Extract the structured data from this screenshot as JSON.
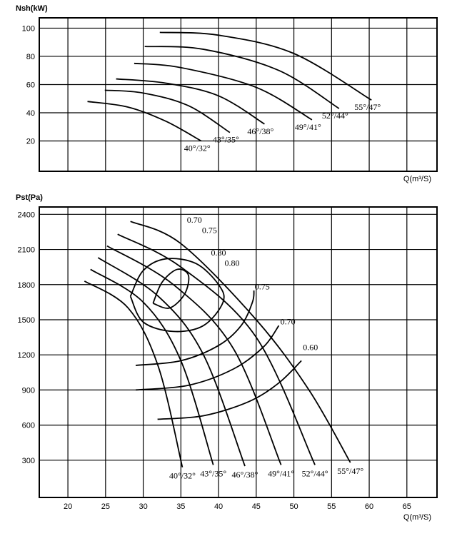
{
  "chart_data": [
    {
      "type": "line",
      "ylabel": "Nsh(kW)",
      "xlabel": "Q(m³/S)",
      "xlim": [
        16.2,
        69
      ],
      "xticks": [
        20,
        25,
        30,
        35,
        40,
        45,
        50,
        55,
        60,
        65
      ],
      "xtick_labels": false,
      "ylim": [
        -1.5,
        107.3
      ],
      "yticks": [
        20,
        40,
        60,
        80,
        100
      ],
      "grid": true,
      "color": "#000000",
      "series": [
        {
          "name": "40°/32°",
          "x": [
            22.6,
            28,
            33,
            37.7
          ],
          "values": [
            48,
            44,
            34,
            20
          ]
        },
        {
          "name": "43°/35°",
          "x": [
            24.9,
            30,
            36,
            41.5
          ],
          "values": [
            56,
            54,
            45,
            26
          ]
        },
        {
          "name": "46°/38°",
          "x": [
            26.4,
            33,
            40,
            46.1
          ],
          "values": [
            64,
            61,
            52,
            32
          ]
        },
        {
          "name": "49°/41°",
          "x": [
            28.8,
            35,
            45,
            52.4
          ],
          "values": [
            75,
            72,
            58,
            35
          ]
        },
        {
          "name": "52°/44°",
          "x": [
            30.2,
            38,
            48,
            56
          ],
          "values": [
            87,
            85,
            70,
            43
          ]
        },
        {
          "name": "55°/47°",
          "x": [
            32.2,
            40,
            50,
            60.3
          ],
          "values": [
            97,
            95,
            82,
            49
          ]
        }
      ]
    },
    {
      "type": "line",
      "ylabel": "Pst(Pa)",
      "xlabel": "Q(m³/S)",
      "xlim": [
        16.2,
        69
      ],
      "xticks": [
        20,
        25,
        30,
        35,
        40,
        45,
        50,
        55,
        60,
        65
      ],
      "xtick_labels": true,
      "ylim": [
        -18,
        2463
      ],
      "yticks": [
        300,
        600,
        900,
        1200,
        1500,
        1800,
        2100,
        2400
      ],
      "grid": true,
      "color": "#000000",
      "series": [
        {
          "name": "40°/32°",
          "x": [
            22.2,
            28,
            32,
            35.2
          ],
          "values": [
            1830,
            1600,
            1100,
            240
          ]
        },
        {
          "name": "43°/35°",
          "x": [
            23,
            30,
            35,
            39.3
          ],
          "values": [
            1930,
            1650,
            1150,
            260
          ]
        },
        {
          "name": "46°/38°",
          "x": [
            24,
            32,
            38,
            43.5
          ],
          "values": [
            2030,
            1700,
            1200,
            250
          ]
        },
        {
          "name": "49°/41°",
          "x": [
            25.2,
            34,
            42,
            48.3
          ],
          "values": [
            2130,
            1800,
            1250,
            260
          ]
        },
        {
          "name": "52°/44°",
          "x": [
            26.6,
            35,
            45,
            52.8
          ],
          "values": [
            2230,
            1950,
            1350,
            260
          ]
        },
        {
          "name": "55°/47°",
          "x": [
            28.3,
            35,
            45,
            52,
            57.5
          ],
          "values": [
            2340,
            2150,
            1500,
            900,
            280
          ]
        }
      ],
      "contours": [
        {
          "x": [
            31.3,
            32.5,
            34.5,
            36,
            35.5,
            33.5,
            31.3
          ],
          "values": [
            1640,
            1820,
            1930,
            1880,
            1720,
            1600,
            1640
          ]
        },
        {
          "x": [
            28.3,
            30,
            33,
            37,
            40,
            40.6,
            38,
            34,
            30,
            28.3
          ],
          "values": [
            1700,
            1920,
            2020,
            1980,
            1800,
            1650,
            1450,
            1400,
            1480,
            1700
          ]
        },
        {
          "x": [
            29,
            35,
            40,
            43,
            44.5,
            44.7
          ],
          "values": [
            1110,
            1150,
            1280,
            1450,
            1650,
            1750
          ]
        },
        {
          "x": [
            29,
            36,
            42,
            46,
            48
          ],
          "values": [
            900,
            940,
            1080,
            1270,
            1450
          ]
        },
        {
          "x": [
            31.9,
            38,
            44,
            48,
            51
          ],
          "values": [
            650,
            680,
            800,
            960,
            1150
          ]
        }
      ],
      "annotations": [
        {
          "text": "0.70",
          "x": 35.8,
          "y": 2330
        },
        {
          "text": "0.75",
          "x": 37.8,
          "y": 2240
        },
        {
          "text": "0.80",
          "x": 39,
          "y": 2050
        },
        {
          "text": "0.80",
          "x": 40.8,
          "y": 1960
        },
        {
          "text": "0.75",
          "x": 44.8,
          "y": 1760
        },
        {
          "text": "0.70",
          "x": 48.2,
          "y": 1460
        },
        {
          "text": "0.60",
          "x": 51.2,
          "y": 1240
        }
      ]
    }
  ]
}
